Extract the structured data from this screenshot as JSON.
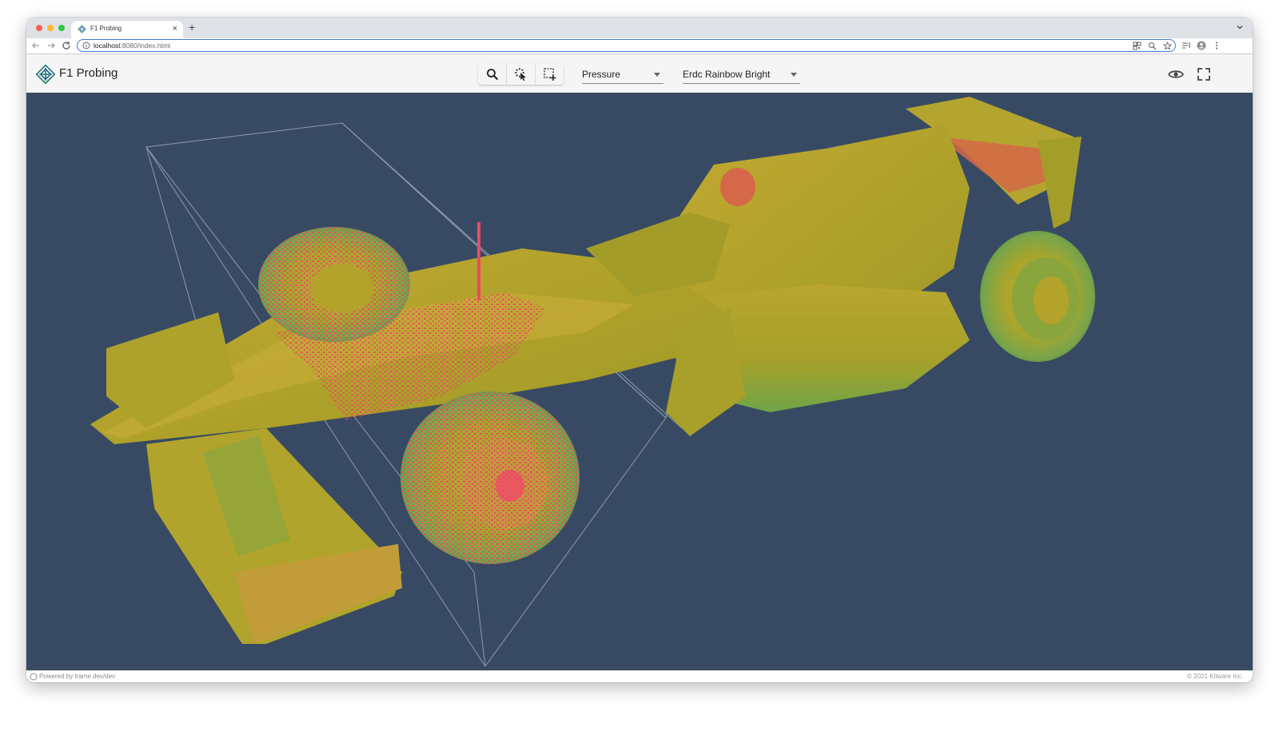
{
  "browser": {
    "tab_title": "F1 Probing",
    "url_host": "localhost",
    "url_path": ":8080/index.html"
  },
  "app": {
    "title": "F1 Probing",
    "tools": [
      "search-icon",
      "probe-pointer-icon",
      "select-region-icon"
    ],
    "field_select": {
      "value": "Pressure"
    },
    "colormap_select": {
      "value": "Erdc Rainbow Bright"
    },
    "right_actions": [
      "eye-icon",
      "fullscreen-icon"
    ]
  },
  "scene": {
    "model": "F1 car colored by pressure",
    "colors": {
      "background": "#384a63",
      "surface": "#b3a32a",
      "probe": "#f2456a",
      "outline": "#a9b4c3"
    }
  },
  "footer": {
    "left": "Powered by trame dev/dev",
    "right": "© 2021 Kitware Inc."
  }
}
